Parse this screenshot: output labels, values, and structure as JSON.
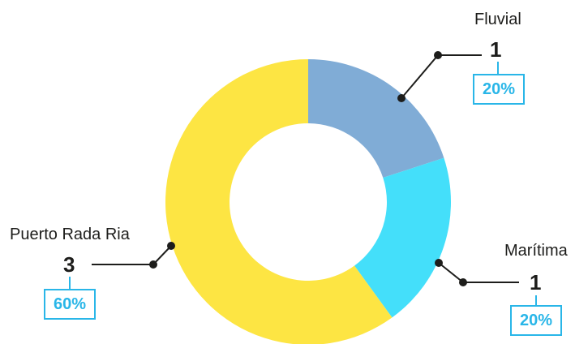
{
  "chart_data": {
    "type": "pie",
    "donut": true,
    "categories": [
      "Fluvial",
      "Marítima",
      "Puerto Rada Ria"
    ],
    "values": [
      1,
      1,
      3
    ],
    "value_labels": [
      "1",
      "1",
      "3"
    ],
    "percent_labels": [
      "20%",
      "20%",
      "60%"
    ],
    "colors": [
      "#80acd6",
      "#44dffa",
      "#fde543"
    ],
    "title": "",
    "legend": "none"
  },
  "style": {
    "accent": "#29b6e8",
    "leader_line": "#1d1d1b"
  }
}
